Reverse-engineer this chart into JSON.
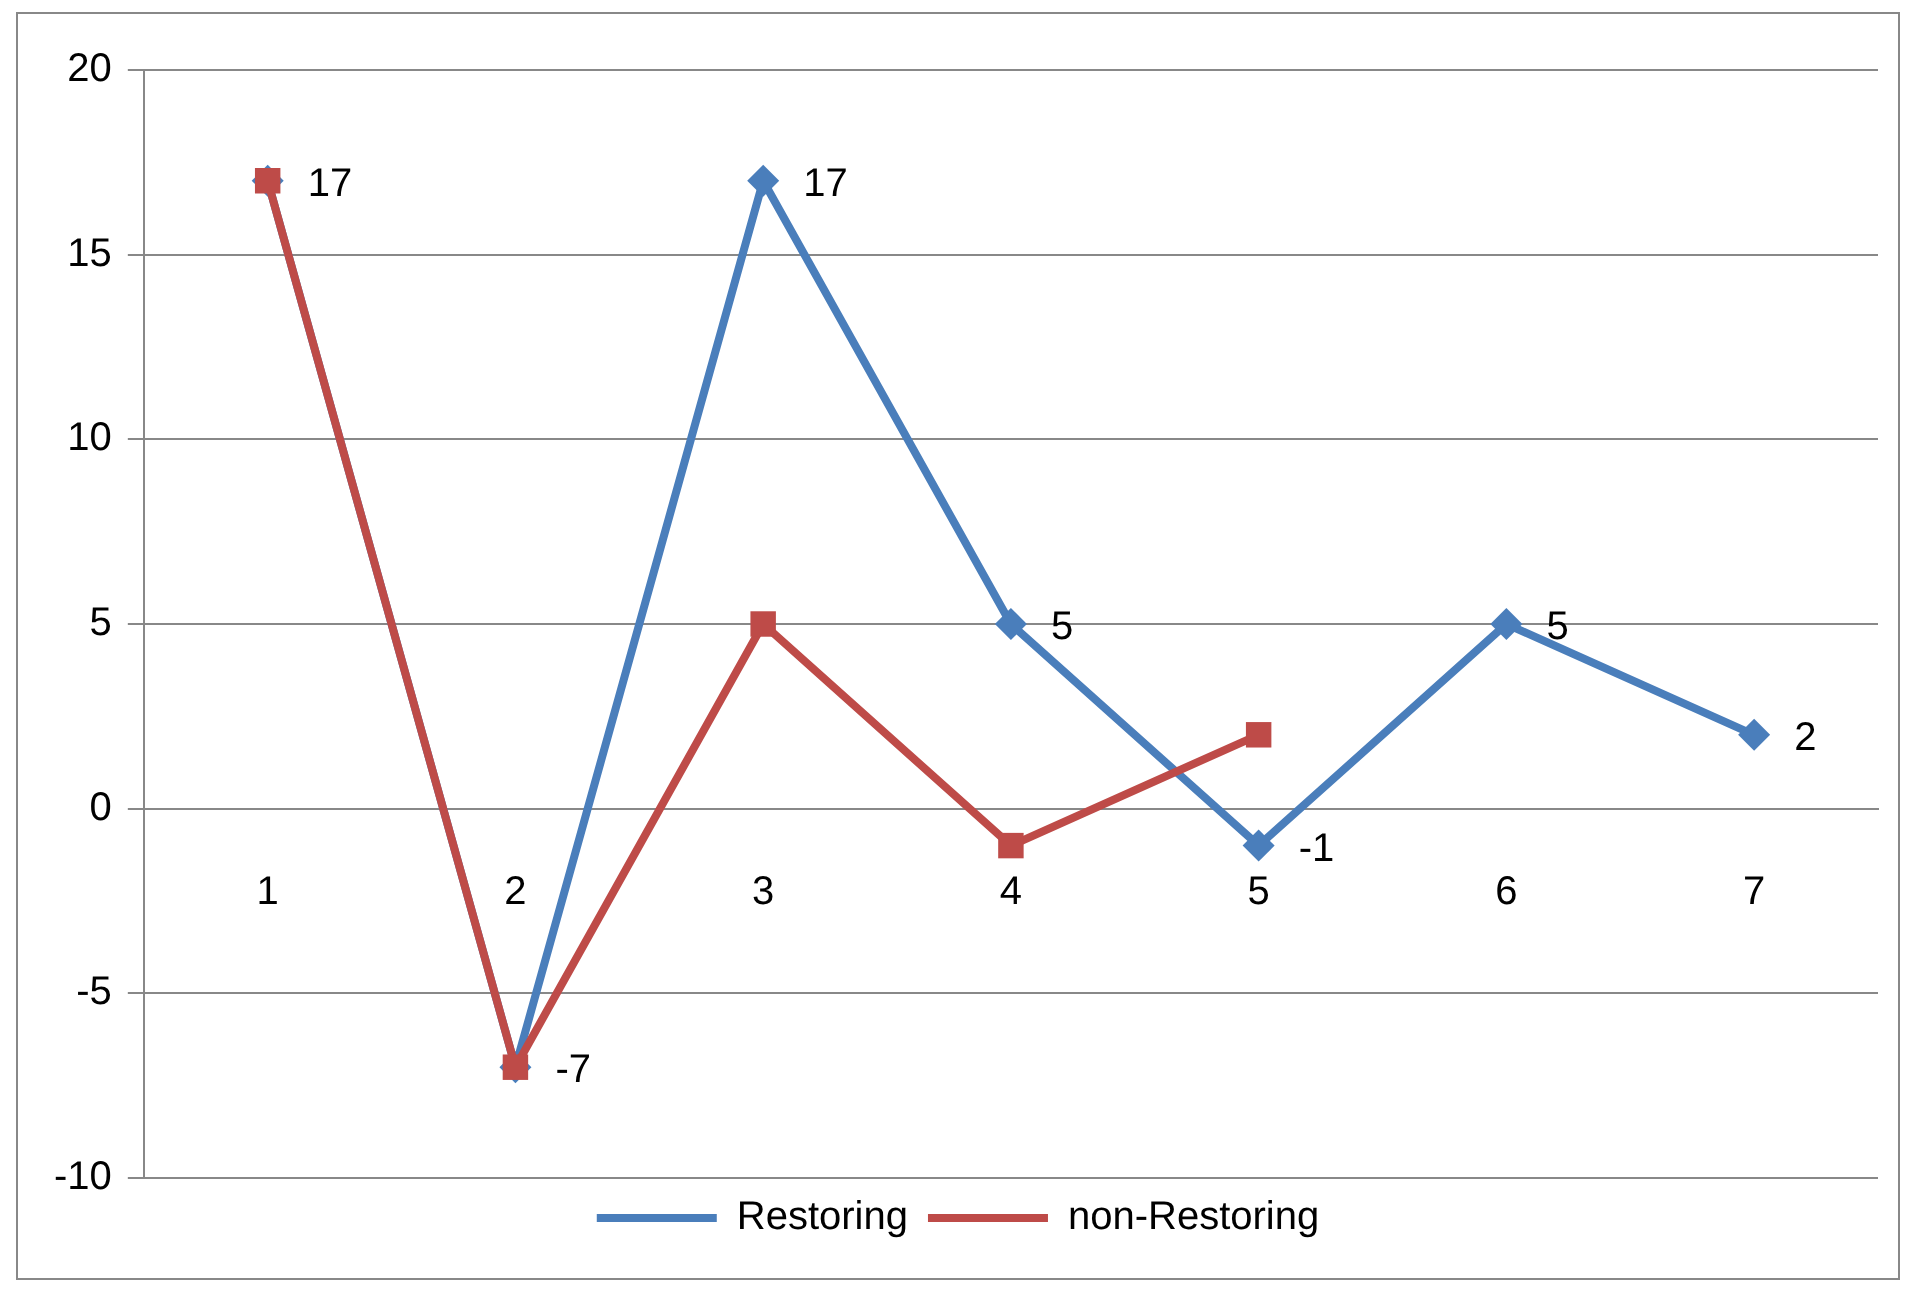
{
  "chart_data": {
    "type": "line",
    "categories": [
      "1",
      "2",
      "3",
      "4",
      "5",
      "6",
      "7"
    ],
    "series": [
      {
        "name": "Restoring",
        "color": "#4a7ebb",
        "marker": "diamond",
        "values": [
          17,
          -7,
          17,
          5,
          -1,
          5,
          2
        ],
        "value_labels": [
          "17",
          "-7",
          "17",
          "5",
          "-1",
          "5",
          "2"
        ]
      },
      {
        "name": "non-Restoring",
        "color": "#be4b48",
        "marker": "square",
        "values": [
          17,
          -7,
          5,
          -1,
          2,
          null,
          null
        ]
      }
    ],
    "ylim": [
      -10,
      20
    ],
    "yticks": [
      -10,
      -5,
      0,
      5,
      10,
      15,
      20
    ],
    "grid": "y",
    "legend": "bottom",
    "line_style": "solid"
  }
}
